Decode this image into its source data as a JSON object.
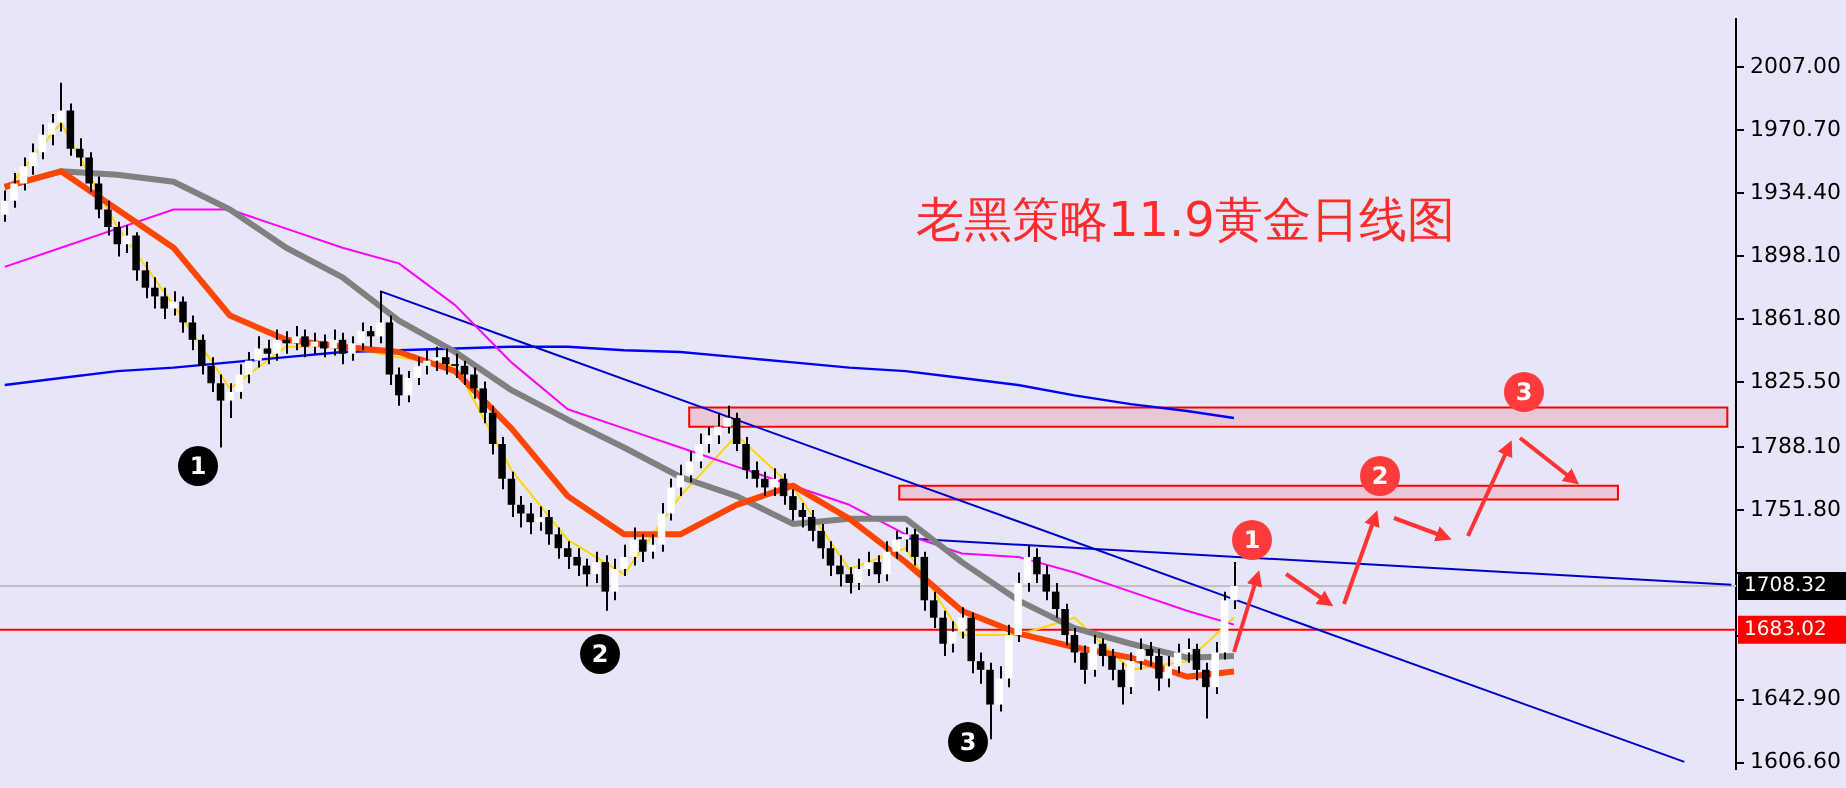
{
  "chart_data": {
    "type": "candlestick",
    "title": "老黑策略11.9黄金日线图",
    "categories": [
      null,
      null,
      null,
      null,
      null,
      null,
      null,
      null,
      null,
      null,
      null,
      null,
      null,
      null,
      null,
      null,
      null,
      null,
      null,
      null,
      null,
      null,
      null,
      null,
      null,
      null,
      null,
      null,
      null,
      null,
      null,
      null,
      null,
      null,
      null,
      null,
      null,
      null,
      null,
      null,
      null,
      null,
      null,
      null,
      null,
      null,
      null,
      null,
      null,
      null,
      null,
      null,
      null,
      null,
      null,
      null,
      null,
      null,
      null,
      null,
      null,
      null,
      null,
      null,
      null,
      null,
      null,
      null,
      null,
      null,
      null,
      null,
      null,
      null,
      null,
      null,
      null,
      null,
      null,
      null,
      null,
      null,
      null,
      null,
      null,
      null,
      null,
      null,
      null,
      null,
      null,
      null,
      null,
      null,
      null,
      null,
      null,
      null,
      null,
      null,
      null,
      null,
      null,
      null,
      null,
      null,
      null,
      null,
      null,
      null,
      null,
      null,
      null,
      null,
      null,
      null,
      null,
      null,
      null,
      null,
      null,
      null,
      null,
      null,
      null,
      null,
      null,
      null,
      null,
      null,
      null,
      null,
      null,
      null,
      null,
      null,
      null,
      null,
      null,
      null,
      null,
      null,
      null,
      null,
      null,
      null,
      null,
      null,
      null,
      null,
      null,
      null,
      null,
      null,
      null,
      null,
      null,
      null,
      null,
      null,
      null,
      null,
      null,
      null,
      null,
      null,
      null,
      null,
      null,
      null,
      null,
      null,
      null,
      null,
      null,
      null,
      null,
      null,
      null,
      null,
      null,
      null,
      null,
      null,
      null
    ],
    "ohlc": [
      [
        1922,
        1936,
        1918,
        1930
      ],
      [
        1930,
        1946,
        1926,
        1940
      ],
      [
        1940,
        1955,
        1936,
        1950
      ],
      [
        1950,
        1963,
        1945,
        1958
      ],
      [
        1958,
        1974,
        1954,
        1968
      ],
      [
        1968,
        1980,
        1962,
        1975
      ],
      [
        1975,
        1998,
        1970,
        1982
      ],
      [
        1982,
        1986,
        1956,
        1960
      ],
      [
        1960,
        1966,
        1950,
        1955
      ],
      [
        1955,
        1958,
        1935,
        1940
      ],
      [
        1940,
        1944,
        1920,
        1925
      ],
      [
        1925,
        1930,
        1910,
        1915
      ],
      [
        1915,
        1918,
        1898,
        1905
      ],
      [
        1905,
        1916,
        1900,
        1910
      ],
      [
        1910,
        1912,
        1884,
        1890
      ],
      [
        1890,
        1895,
        1874,
        1880
      ],
      [
        1880,
        1886,
        1868,
        1875
      ],
      [
        1875,
        1880,
        1862,
        1868
      ],
      [
        1868,
        1878,
        1864,
        1872
      ],
      [
        1872,
        1875,
        1854,
        1860
      ],
      [
        1860,
        1864,
        1844,
        1850
      ],
      [
        1850,
        1853,
        1830,
        1835
      ],
      [
        1835,
        1840,
        1820,
        1825
      ],
      [
        1825,
        1830,
        1788,
        1815
      ],
      [
        1815,
        1825,
        1805,
        1820
      ],
      [
        1820,
        1836,
        1816,
        1830
      ],
      [
        1830,
        1843,
        1825,
        1838
      ],
      [
        1838,
        1852,
        1834,
        1845
      ],
      [
        1845,
        1850,
        1836,
        1842
      ],
      [
        1842,
        1856,
        1838,
        1850
      ],
      [
        1850,
        1855,
        1842,
        1848
      ],
      [
        1848,
        1858,
        1844,
        1852
      ],
      [
        1852,
        1856,
        1840,
        1846
      ],
      [
        1846,
        1854,
        1842,
        1849
      ],
      [
        1849,
        1853,
        1840,
        1845
      ],
      [
        1845,
        1856,
        1841,
        1850
      ],
      [
        1850,
        1854,
        1836,
        1842
      ],
      [
        1842,
        1852,
        1838,
        1848
      ],
      [
        1848,
        1860,
        1844,
        1855
      ],
      [
        1855,
        1858,
        1846,
        1852
      ],
      [
        1852,
        1878,
        1848,
        1860
      ],
      [
        1860,
        1864,
        1824,
        1830
      ],
      [
        1830,
        1834,
        1812,
        1818
      ],
      [
        1818,
        1832,
        1814,
        1828
      ],
      [
        1828,
        1840,
        1824,
        1835
      ],
      [
        1835,
        1844,
        1830,
        1838
      ],
      [
        1838,
        1846,
        1832,
        1840
      ],
      [
        1840,
        1845,
        1830,
        1836
      ],
      [
        1836,
        1842,
        1828,
        1835
      ],
      [
        1835,
        1838,
        1824,
        1830
      ],
      [
        1830,
        1834,
        1816,
        1822
      ],
      [
        1822,
        1826,
        1802,
        1808
      ],
      [
        1808,
        1812,
        1784,
        1790
      ],
      [
        1790,
        1794,
        1764,
        1770
      ],
      [
        1770,
        1774,
        1748,
        1755
      ],
      [
        1755,
        1760,
        1742,
        1750
      ],
      [
        1750,
        1756,
        1738,
        1745
      ],
      [
        1745,
        1754,
        1740,
        1748
      ],
      [
        1748,
        1752,
        1732,
        1738
      ],
      [
        1738,
        1742,
        1724,
        1730
      ],
      [
        1730,
        1734,
        1718,
        1725
      ],
      [
        1725,
        1730,
        1714,
        1720
      ],
      [
        1720,
        1724,
        1708,
        1715
      ],
      [
        1715,
        1728,
        1710,
        1722
      ],
      [
        1722,
        1726,
        1694,
        1705
      ],
      [
        1705,
        1724,
        1700,
        1718
      ],
      [
        1718,
        1732,
        1714,
        1725
      ],
      [
        1725,
        1742,
        1720,
        1735
      ],
      [
        1735,
        1738,
        1722,
        1728
      ],
      [
        1728,
        1738,
        1724,
        1732
      ],
      [
        1732,
        1756,
        1728,
        1750
      ],
      [
        1750,
        1770,
        1746,
        1765
      ],
      [
        1765,
        1778,
        1760,
        1772
      ],
      [
        1772,
        1786,
        1768,
        1780
      ],
      [
        1780,
        1796,
        1776,
        1790
      ],
      [
        1790,
        1800,
        1785,
        1795
      ],
      [
        1795,
        1808,
        1790,
        1800
      ],
      [
        1800,
        1812,
        1796,
        1805
      ],
      [
        1805,
        1808,
        1786,
        1790
      ],
      [
        1790,
        1794,
        1770,
        1775
      ],
      [
        1775,
        1780,
        1765,
        1770
      ],
      [
        1770,
        1774,
        1760,
        1765
      ],
      [
        1765,
        1776,
        1760,
        1770
      ],
      [
        1770,
        1773,
        1755,
        1760
      ],
      [
        1760,
        1764,
        1746,
        1752
      ],
      [
        1752,
        1756,
        1742,
        1748
      ],
      [
        1748,
        1752,
        1734,
        1740
      ],
      [
        1740,
        1744,
        1724,
        1730
      ],
      [
        1730,
        1734,
        1714,
        1720
      ],
      [
        1720,
        1726,
        1708,
        1715
      ],
      [
        1715,
        1719,
        1704,
        1710
      ],
      [
        1710,
        1724,
        1706,
        1718
      ],
      [
        1718,
        1728,
        1714,
        1722
      ],
      [
        1722,
        1726,
        1710,
        1715
      ],
      [
        1715,
        1734,
        1711,
        1728
      ],
      [
        1728,
        1740,
        1724,
        1735
      ],
      [
        1735,
        1742,
        1728,
        1738
      ],
      [
        1738,
        1741,
        1720,
        1725
      ],
      [
        1725,
        1728,
        1694,
        1700
      ],
      [
        1700,
        1705,
        1684,
        1690
      ],
      [
        1690,
        1694,
        1668,
        1675
      ],
      [
        1675,
        1688,
        1670,
        1682
      ],
      [
        1682,
        1696,
        1678,
        1690
      ],
      [
        1690,
        1693,
        1658,
        1665
      ],
      [
        1665,
        1670,
        1652,
        1660
      ],
      [
        1660,
        1664,
        1620,
        1640
      ],
      [
        1640,
        1662,
        1636,
        1655
      ],
      [
        1655,
        1686,
        1650,
        1680
      ],
      [
        1680,
        1716,
        1676,
        1710
      ],
      [
        1710,
        1732,
        1705,
        1725
      ],
      [
        1725,
        1730,
        1710,
        1715
      ],
      [
        1715,
        1720,
        1700,
        1705
      ],
      [
        1705,
        1710,
        1690,
        1695
      ],
      [
        1695,
        1698,
        1674,
        1680
      ],
      [
        1680,
        1684,
        1664,
        1670
      ],
      [
        1670,
        1674,
        1652,
        1660
      ],
      [
        1660,
        1680,
        1656,
        1675
      ],
      [
        1675,
        1678,
        1662,
        1668
      ],
      [
        1668,
        1672,
        1654,
        1660
      ],
      [
        1660,
        1664,
        1640,
        1650
      ],
      [
        1650,
        1670,
        1646,
        1665
      ],
      [
        1665,
        1678,
        1660,
        1672
      ],
      [
        1672,
        1676,
        1662,
        1668
      ],
      [
        1668,
        1672,
        1648,
        1655
      ],
      [
        1655,
        1668,
        1650,
        1662
      ],
      [
        1662,
        1675,
        1658,
        1670
      ],
      [
        1670,
        1678,
        1664,
        1672
      ],
      [
        1672,
        1675,
        1654,
        1660
      ],
      [
        1660,
        1664,
        1632,
        1650
      ],
      [
        1650,
        1676,
        1646,
        1670
      ],
      [
        1670,
        1705,
        1666,
        1700
      ],
      [
        1700,
        1722,
        1695,
        1708.32
      ],
      null,
      null,
      null,
      null,
      null,
      null,
      null,
      null,
      null,
      null,
      null,
      null,
      null,
      null,
      null,
      null,
      null,
      null,
      null,
      null,
      null,
      null,
      null,
      null,
      null,
      null,
      null,
      null,
      null,
      null,
      null,
      null,
      null,
      null,
      null,
      null,
      null,
      null,
      null,
      null,
      null,
      null,
      null,
      null,
      null,
      null,
      null,
      null,
      null,
      null,
      null,
      null,
      null
    ],
    "series": [
      {
        "type": "line",
        "color": "#ff4500",
        "values": [
          1938,
          null,
          null,
          null,
          null,
          null,
          1947,
          null,
          null,
          null,
          null,
          null,
          1925,
          null,
          null,
          null,
          null,
          null,
          1903,
          null,
          null,
          null,
          null,
          null,
          1864,
          null,
          null,
          null,
          null,
          null,
          1850,
          null,
          null,
          null,
          null,
          null,
          1846,
          null,
          null,
          null,
          null,
          null,
          1843,
          null,
          null,
          null,
          null,
          null,
          1832,
          null,
          null,
          null,
          null,
          null,
          1799,
          null,
          null,
          null,
          null,
          null,
          1760,
          null,
          null,
          null,
          null,
          null,
          1738,
          null,
          null,
          null,
          null,
          null,
          1738,
          null,
          null,
          null,
          null,
          null,
          1755,
          null,
          null,
          null,
          null,
          null,
          1766,
          null,
          null,
          null,
          null,
          null,
          1747,
          null,
          null,
          null,
          null,
          null,
          1722,
          null,
          null,
          null,
          null,
          null,
          1694,
          null,
          null,
          null,
          null,
          null,
          1681,
          null,
          null,
          null,
          null,
          null,
          1673,
          null,
          null,
          null,
          null,
          null,
          1667,
          null,
          null,
          null,
          null,
          null,
          1656,
          null,
          null,
          null,
          null,
          1659,
          null,
          null,
          null,
          null,
          null,
          null,
          null,
          null,
          null,
          null,
          null,
          null,
          null,
          null,
          null,
          null,
          null,
          null,
          null,
          null,
          null,
          null,
          null,
          null,
          null,
          null,
          null,
          null,
          null,
          null,
          null,
          null,
          null,
          null,
          null,
          null,
          null,
          null,
          null,
          null,
          null,
          null,
          null,
          null,
          null,
          null,
          null,
          null,
          null,
          null,
          null,
          null,
          null
        ]
      },
      {
        "type": "line",
        "color": "#808080",
        "values": [
          1938,
          null,
          null,
          null,
          null,
          null,
          1947,
          null,
          null,
          null,
          null,
          null,
          1945,
          null,
          null,
          null,
          null,
          null,
          1941,
          null,
          null,
          null,
          null,
          null,
          1925,
          null,
          null,
          null,
          null,
          null,
          1903,
          null,
          null,
          null,
          null,
          null,
          1886,
          null,
          null,
          null,
          null,
          null,
          1861,
          null,
          null,
          null,
          null,
          null,
          1843,
          null,
          null,
          null,
          null,
          null,
          1821,
          null,
          null,
          null,
          null,
          null,
          1804,
          null,
          null,
          null,
          null,
          null,
          1788,
          null,
          null,
          null,
          null,
          null,
          1771,
          null,
          null,
          null,
          null,
          null,
          1760,
          null,
          null,
          null,
          null,
          null,
          1744,
          null,
          null,
          null,
          null,
          null,
          1747,
          null,
          null,
          null,
          null,
          null,
          1747,
          null,
          null,
          null,
          null,
          null,
          1722,
          null,
          null,
          null,
          null,
          null,
          1700,
          null,
          null,
          null,
          null,
          null,
          1684,
          null,
          null,
          null,
          null,
          null,
          1675,
          null,
          null,
          null,
          null,
          null,
          1667,
          null,
          null,
          null,
          null,
          1668,
          null,
          null,
          null,
          null,
          null,
          null,
          null,
          null,
          null,
          null,
          null,
          null,
          null,
          null,
          null,
          null,
          null,
          null,
          null,
          null,
          null,
          null,
          null,
          null,
          null,
          null,
          null,
          null,
          null,
          null,
          null,
          null,
          null,
          null,
          null,
          null,
          null,
          null,
          null,
          null,
          null,
          null,
          null,
          null,
          null,
          null,
          null,
          null,
          null,
          null,
          null,
          null,
          null
        ]
      },
      {
        "type": "line",
        "color": "#ff00ff",
        "values": [
          1892,
          null,
          null,
          null,
          null,
          null,
          1903,
          null,
          null,
          null,
          null,
          null,
          1914,
          null,
          null,
          null,
          null,
          null,
          1925,
          null,
          null,
          null,
          null,
          null,
          1925,
          null,
          null,
          null,
          null,
          null,
          1914,
          null,
          null,
          null,
          null,
          null,
          1903,
          null,
          null,
          null,
          null,
          null,
          1894,
          null,
          null,
          null,
          null,
          null,
          1870,
          null,
          null,
          null,
          null,
          null,
          1837,
          null,
          null,
          null,
          null,
          null,
          1810,
          null,
          null,
          null,
          null,
          null,
          1799,
          null,
          null,
          null,
          null,
          null,
          1788,
          null,
          null,
          null,
          null,
          null,
          1777,
          null,
          null,
          null,
          null,
          null,
          1766,
          null,
          null,
          null,
          null,
          null,
          1755,
          null,
          null,
          null,
          null,
          null,
          1738,
          null,
          null,
          null,
          null,
          null,
          1727,
          null,
          null,
          null,
          null,
          null,
          1725,
          null,
          null,
          null,
          null,
          null,
          1716,
          null,
          null,
          null,
          null,
          null,
          1705,
          null,
          null,
          null,
          null,
          null,
          1694,
          null,
          null,
          null,
          null,
          1686,
          null,
          null,
          null,
          null,
          null,
          null,
          null,
          null,
          null,
          null,
          null,
          null,
          null,
          null,
          null,
          null,
          null,
          null,
          null,
          null,
          null,
          null,
          null,
          null,
          null,
          null,
          null,
          null,
          null,
          null,
          null,
          null,
          null,
          null,
          null,
          null,
          null,
          null,
          null,
          null,
          null,
          null,
          null,
          null,
          null,
          null,
          null,
          null,
          null,
          null,
          null,
          null,
          null
        ]
      },
      {
        "type": "line",
        "color": "#0000ff",
        "values": [
          1824,
          null,
          null,
          null,
          null,
          null,
          1828,
          null,
          null,
          null,
          null,
          null,
          1832,
          null,
          null,
          null,
          null,
          null,
          1834,
          null,
          null,
          null,
          null,
          null,
          1837,
          null,
          null,
          null,
          null,
          null,
          1840,
          null,
          null,
          null,
          null,
          null,
          1843,
          null,
          null,
          null,
          null,
          null,
          1844,
          null,
          null,
          null,
          null,
          null,
          1845,
          null,
          null,
          null,
          null,
          null,
          1846,
          null,
          null,
          null,
          null,
          null,
          1846,
          null,
          null,
          null,
          null,
          null,
          1844,
          null,
          null,
          null,
          null,
          null,
          1843,
          null,
          null,
          null,
          null,
          null,
          1840,
          null,
          null,
          null,
          null,
          null,
          1837,
          null,
          null,
          null,
          null,
          null,
          1834,
          null,
          null,
          null,
          null,
          null,
          1832,
          null,
          null,
          null,
          null,
          null,
          1828,
          null,
          null,
          null,
          null,
          null,
          1824,
          null,
          null,
          null,
          null,
          null,
          1818,
          null,
          null,
          null,
          null,
          null,
          1813,
          null,
          null,
          null,
          null,
          null,
          1809,
          null,
          null,
          null,
          null,
          1805,
          null,
          null,
          null,
          null,
          null,
          null,
          null,
          null,
          null,
          null,
          null,
          null,
          null,
          null,
          null,
          null,
          null,
          null,
          null,
          null,
          null,
          null,
          null,
          null,
          null,
          null,
          null,
          null,
          null,
          null,
          null,
          null,
          null,
          null,
          null,
          null,
          null,
          null,
          null,
          null,
          null,
          null,
          null,
          null,
          null,
          null,
          null,
          null,
          null,
          null,
          null,
          null,
          null
        ]
      },
      {
        "type": "line",
        "color": "#ffd700",
        "values": [
          1935,
          null,
          null,
          null,
          null,
          null,
          1975,
          null,
          null,
          null,
          null,
          null,
          1915,
          null,
          null,
          null,
          null,
          null,
          1870,
          null,
          null,
          null,
          null,
          null,
          1822,
          null,
          null,
          null,
          null,
          null,
          1846,
          null,
          null,
          null,
          null,
          null,
          1846,
          null,
          null,
          null,
          null,
          null,
          1840,
          null,
          null,
          null,
          null,
          null,
          1835,
          null,
          null,
          null,
          null,
          null,
          1775,
          null,
          null,
          null,
          null,
          null,
          1735,
          null,
          null,
          null,
          null,
          null,
          1715,
          null,
          null,
          null,
          null,
          null,
          1760,
          null,
          null,
          null,
          null,
          null,
          1795,
          null,
          null,
          null,
          null,
          null,
          1765,
          null,
          null,
          null,
          null,
          null,
          1718,
          null,
          null,
          null,
          null,
          null,
          1730,
          null,
          null,
          null,
          null,
          null,
          1680,
          null,
          null,
          null,
          null,
          null,
          1680,
          null,
          null,
          null,
          null,
          null,
          1690,
          null,
          null,
          null,
          null,
          null,
          1660,
          null,
          null,
          null,
          null,
          null,
          1665,
          null,
          null,
          null,
          null,
          1690,
          null,
          null,
          null,
          null,
          null,
          null,
          null,
          null,
          null,
          null,
          null,
          null,
          null,
          null,
          null,
          null,
          null,
          null,
          null,
          null,
          null,
          null,
          null,
          null,
          null,
          null,
          null,
          null,
          null,
          null,
          null,
          null,
          null,
          null,
          null,
          null,
          null,
          null,
          null,
          null,
          null,
          null,
          null,
          null,
          null,
          null,
          null,
          null,
          null,
          null,
          null,
          null,
          null
        ]
      },
      {
        "type": "line",
        "color": "#0000cd",
        "values": [
          null,
          null,
          null,
          null,
          null,
          null,
          null,
          null,
          null,
          null,
          null,
          null,
          null,
          null,
          null,
          null,
          null,
          null,
          null,
          null,
          null,
          null,
          null,
          null,
          null,
          null,
          null,
          null,
          null,
          null,
          null,
          null,
          null,
          null,
          null,
          null,
          null,
          null,
          null,
          null,
          1878,
          null,
          null,
          null,
          null,
          null,
          null,
          null,
          null,
          null,
          null,
          null,
          null,
          null,
          null,
          null,
          null,
          null,
          null,
          null,
          null,
          null,
          null,
          null,
          null,
          null,
          null,
          null,
          null,
          null,
          null,
          null,
          null,
          null,
          null,
          null,
          null,
          null,
          null,
          null,
          null,
          null,
          null,
          null,
          null,
          null,
          null,
          null,
          null,
          null,
          null,
          null,
          null,
          null,
          null,
          null,
          null,
          null,
          null,
          null,
          null,
          null,
          null,
          null,
          null,
          null,
          null,
          null,
          null,
          null,
          null,
          null,
          null,
          null,
          null,
          null,
          null,
          null,
          null,
          null,
          null,
          null,
          null,
          null,
          null,
          null,
          null,
          null,
          null,
          null,
          null,
          null,
          null,
          null,
          null,
          null,
          null,
          null,
          null,
          null,
          null,
          null,
          null,
          null,
          null,
          null,
          null,
          null,
          null,
          null,
          null,
          null,
          null,
          null,
          null,
          null,
          null,
          null,
          null,
          null,
          null,
          null,
          null,
          null,
          null,
          null,
          null,
          null,
          null,
          null,
          null,
          null,
          null,
          null,
          null,
          null,
          null,
          null,
          null,
          1607,
          null,
          null,
          null,
          null,
          null
        ]
      },
      {
        "type": "line",
        "color": "#0000cd",
        "values": [
          null,
          null,
          null,
          null,
          null,
          null,
          null,
          null,
          null,
          null,
          null,
          null,
          null,
          null,
          null,
          null,
          null,
          null,
          null,
          null,
          null,
          null,
          null,
          null,
          null,
          null,
          null,
          null,
          null,
          null,
          null,
          null,
          null,
          null,
          null,
          null,
          null,
          null,
          null,
          null,
          null,
          null,
          null,
          null,
          null,
          null,
          null,
          null,
          null,
          null,
          null,
          null,
          null,
          null,
          null,
          null,
          null,
          null,
          null,
          null,
          null,
          null,
          null,
          null,
          null,
          null,
          null,
          null,
          null,
          null,
          null,
          null,
          null,
          null,
          null,
          null,
          null,
          null,
          null,
          null,
          null,
          null,
          null,
          null,
          null,
          null,
          null,
          null,
          null,
          null,
          null,
          null,
          null,
          null,
          null,
          1736,
          null,
          null,
          null,
          null,
          null,
          null,
          null,
          null,
          null,
          null,
          null,
          null,
          null,
          null,
          null,
          null,
          null,
          null,
          null,
          null,
          null,
          null,
          null,
          null,
          null,
          null,
          null,
          null,
          null,
          null,
          null,
          null,
          null,
          null,
          null,
          null,
          null,
          null,
          null,
          null,
          null,
          null,
          null,
          null,
          null,
          null,
          null,
          null,
          null,
          null,
          null,
          null,
          null,
          null,
          null,
          null,
          null,
          null,
          null,
          null,
          null,
          null,
          null,
          null,
          null,
          null,
          null,
          null,
          null,
          null,
          null,
          null,
          null,
          null,
          null,
          null,
          null,
          null,
          null,
          null,
          null,
          null,
          null,
          null,
          null,
          null,
          null,
          null,
          1709
        ]
      }
    ],
    "ylim": [
      1603,
      2034.6
    ],
    "yticks": [
      {
        "value": 1606.6,
        "label": "1606.60"
      },
      {
        "value": 1642.9,
        "label": "1642.90"
      },
      {
        "value": 1679.2,
        "label": null
      },
      {
        "value": 1715.5,
        "label": null
      },
      {
        "value": 1751.8,
        "label": "1751.80"
      },
      {
        "value": 1788.1,
        "label": "1788.10"
      },
      {
        "value": 1825.5,
        "label": "1825.50"
      },
      {
        "value": 1861.8,
        "label": "1861.80"
      },
      {
        "value": 1898.1,
        "label": "1898.10"
      },
      {
        "value": 1934.4,
        "label": "1934.40"
      },
      {
        "value": 1970.7,
        "label": "1970.70"
      },
      {
        "value": 2007,
        "label": "2007.00"
      }
    ],
    "ref_lines": [
      {
        "axis": "y",
        "value": 1708.32,
        "label": "1708.32",
        "color": "#c0c0c0"
      },
      {
        "axis": "y",
        "value": 1683.02,
        "label": "1683.02",
        "color": "#ff0000"
      }
    ],
    "bands": [
      {
        "axis": "y",
        "from": 1800,
        "to": 1811,
        "color": "#ff0000"
      },
      {
        "axis": "y",
        "from": 1758,
        "to": 1766,
        "color": "#ff0000"
      }
    ],
    "annotations": [
      "1",
      "2",
      "3",
      "1",
      "2",
      "3"
    ]
  }
}
